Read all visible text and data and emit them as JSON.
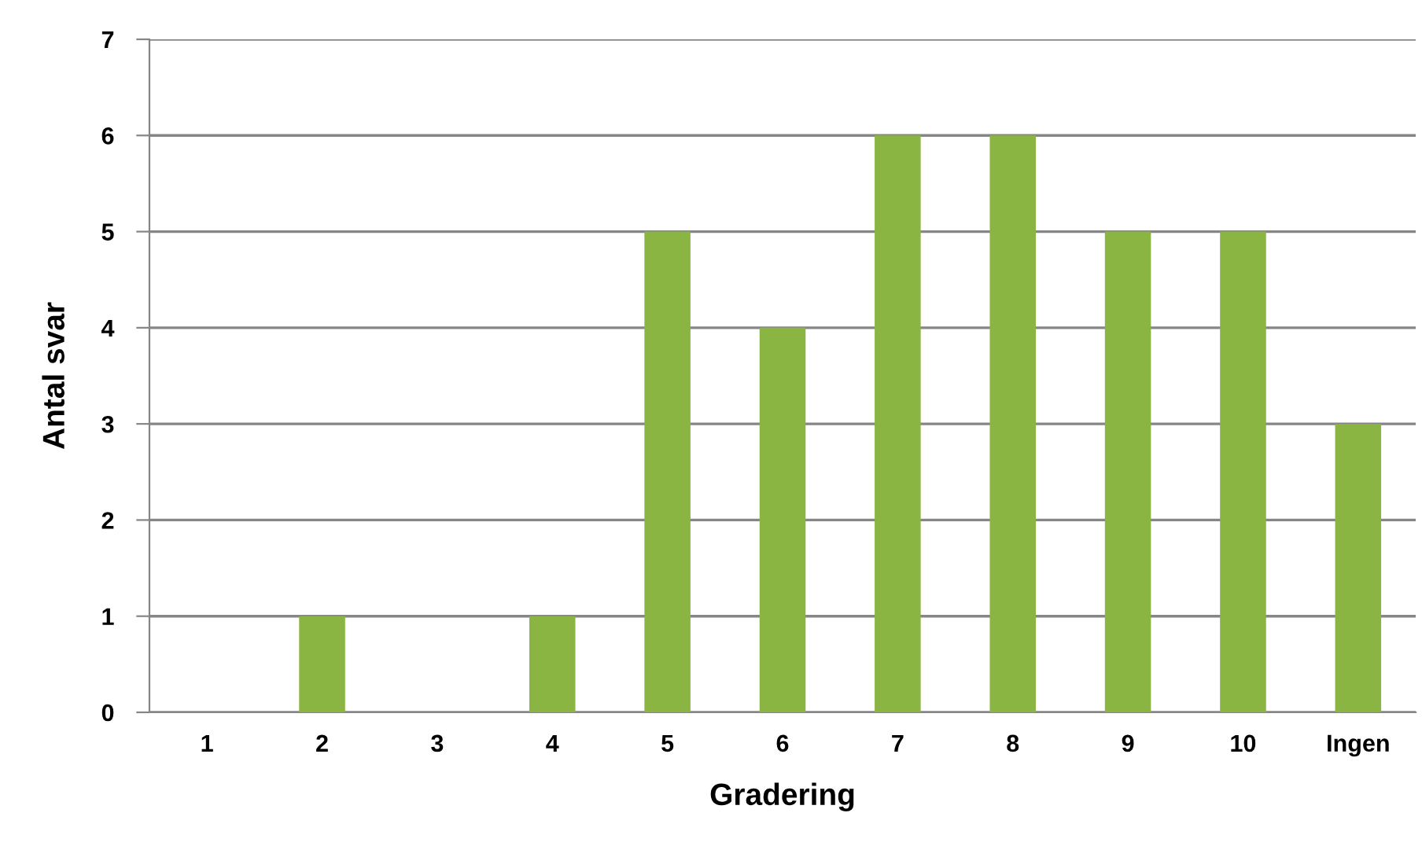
{
  "chart_data": {
    "type": "bar",
    "xlabel": "Gradering",
    "ylabel": "Antal svar",
    "categories": [
      "1",
      "2",
      "3",
      "4",
      "5",
      "6",
      "7",
      "8",
      "9",
      "10",
      "Ingen"
    ],
    "values": [
      0,
      1,
      0,
      1,
      5,
      4,
      6,
      6,
      5,
      5,
      3
    ],
    "color": "#8ab543",
    "ylim": [
      0,
      7
    ],
    "yticks": [
      0,
      1,
      2,
      3,
      4,
      5,
      6,
      7
    ],
    "grid": "y",
    "legend": false
  }
}
